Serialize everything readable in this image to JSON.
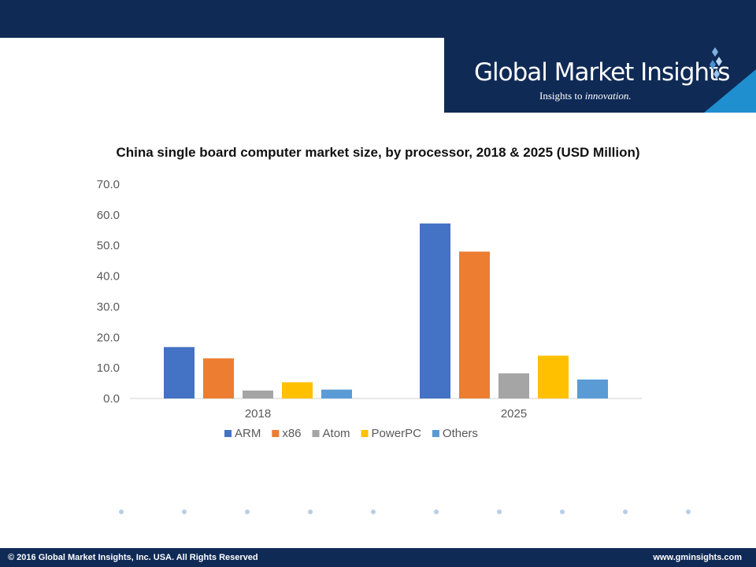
{
  "brand": {
    "name": "Global Market Insights",
    "tagline_prefix": "Insights to ",
    "tagline_emphasis": "innovation."
  },
  "footer": {
    "copyright": "© 2016 Global Market Insights, Inc. USA.  All Rights Reserved",
    "website": "www.gminsights.com"
  },
  "colors": {
    "header_bg": "#0f2a55",
    "accent": "#1f8fd0"
  },
  "chart_data": {
    "type": "bar",
    "title": "China single board computer market size, by processor, 2018 & 2025 (USD Million)",
    "xlabel": "",
    "ylabel": "",
    "categories": [
      "2018",
      "2025"
    ],
    "ylim": [
      0,
      70
    ],
    "yticks": [
      "0.0",
      "10.0",
      "20.0",
      "30.0",
      "40.0",
      "50.0",
      "60.0",
      "70.0"
    ],
    "grid": false,
    "legend_position": "bottom",
    "series": [
      {
        "name": "ARM",
        "color": "#4472c4",
        "values": [
          16.8,
          57.2
        ]
      },
      {
        "name": "x86",
        "color": "#ed7d31",
        "values": [
          13.1,
          48.0
        ]
      },
      {
        "name": "Atom",
        "color": "#a5a5a5",
        "values": [
          2.6,
          8.2
        ]
      },
      {
        "name": "PowerPC",
        "color": "#ffc000",
        "values": [
          5.3,
          14.0
        ]
      },
      {
        "name": "Others",
        "color": "#5b9bd5",
        "values": [
          2.9,
          6.2
        ]
      }
    ]
  }
}
